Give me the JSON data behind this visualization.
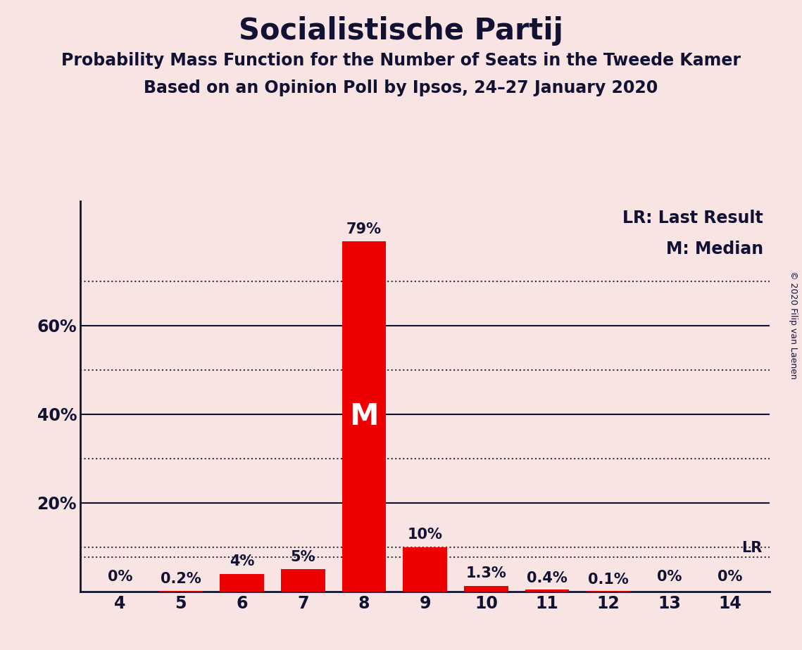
{
  "title": "Socialistische Partij",
  "subtitle1": "Probability Mass Function for the Number of Seats in the Tweede Kamer",
  "subtitle2": "Based on an Opinion Poll by Ipsos, 24–27 January 2020",
  "copyright": "© 2020 Filip van Laenen",
  "legend_lr": "LR: Last Result",
  "legend_m": "M: Median",
  "background_color": "#f9e4e4",
  "bar_color": "#ee0000",
  "categories": [
    4,
    5,
    6,
    7,
    8,
    9,
    10,
    11,
    12,
    13,
    14
  ],
  "values": [
    0.0,
    0.2,
    4.0,
    5.0,
    79.0,
    10.0,
    1.3,
    0.4,
    0.1,
    0.0,
    0.0
  ],
  "labels": [
    "0%",
    "0.2%",
    "4%",
    "5%",
    "79%",
    "10%",
    "1.3%",
    "0.4%",
    "0.1%",
    "0%",
    "0%"
  ],
  "median_seat": 8,
  "last_result_seat": 14,
  "last_result_value": 7.8,
  "ylim": [
    0,
    88
  ],
  "solid_lines": [
    20,
    40,
    60
  ],
  "dotted_lines": [
    10,
    30,
    50,
    70
  ],
  "axis_color": "#111133",
  "text_color": "#111133",
  "title_fontsize": 30,
  "subtitle_fontsize": 17,
  "label_fontsize": 15,
  "tick_fontsize": 17,
  "legend_fontsize": 17,
  "copyright_fontsize": 9
}
